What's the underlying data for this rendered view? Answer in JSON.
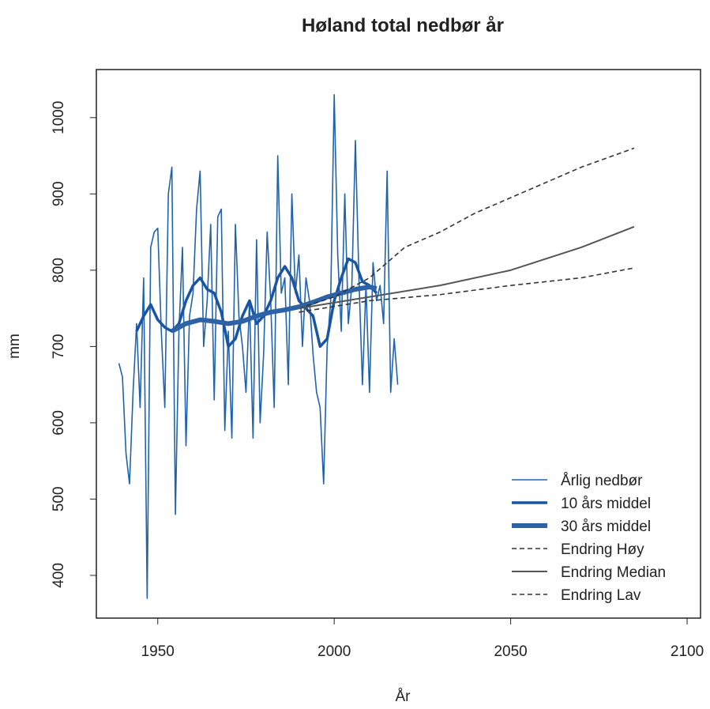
{
  "chart_data": {
    "type": "line",
    "title": "Høland total nedbør  år",
    "xlabel": "År",
    "ylabel": "mm",
    "xlim": [
      1932.6,
      2103.8
    ],
    "ylim": [
      344,
      1063
    ],
    "xticks": [
      1950,
      2000,
      2050,
      2100
    ],
    "yticks": [
      400,
      500,
      600,
      700,
      800,
      900,
      1000
    ],
    "legend": "bottom-right",
    "series": [
      {
        "name": "Årlig nedbør",
        "color": "#1f63ad",
        "width": 1.6,
        "dash": "solid",
        "x": [
          1939,
          1940,
          1941,
          1942,
          1943,
          1944,
          1945,
          1946,
          1947,
          1948,
          1949,
          1950,
          1951,
          1952,
          1953,
          1954,
          1955,
          1956,
          1957,
          1958,
          1959,
          1960,
          1961,
          1962,
          1963,
          1964,
          1965,
          1966,
          1967,
          1968,
          1969,
          1970,
          1971,
          1972,
          1973,
          1974,
          1975,
          1976,
          1977,
          1978,
          1979,
          1980,
          1981,
          1982,
          1983,
          1984,
          1985,
          1986,
          1987,
          1988,
          1989,
          1990,
          1991,
          1992,
          1993,
          1994,
          1995,
          1996,
          1997,
          1998,
          1999,
          2000,
          2001,
          2002,
          2003,
          2004,
          2005,
          2006,
          2007,
          2008,
          2009,
          2010,
          2011,
          2012,
          2013,
          2014,
          2015,
          2016,
          2017,
          2018
        ],
        "values": [
          678,
          660,
          560,
          520,
          640,
          730,
          620,
          790,
          370,
          830,
          850,
          855,
          720,
          620,
          900,
          935,
          480,
          720,
          830,
          570,
          740,
          770,
          880,
          930,
          700,
          760,
          860,
          630,
          870,
          880,
          590,
          720,
          580,
          860,
          740,
          700,
          640,
          760,
          580,
          840,
          600,
          690,
          850,
          760,
          620,
          950,
          770,
          790,
          650,
          900,
          770,
          820,
          700,
          790,
          760,
          690,
          640,
          620,
          520,
          700,
          760,
          1030,
          820,
          720,
          900,
          730,
          780,
          970,
          790,
          650,
          780,
          640,
          810,
          760,
          780,
          730,
          930,
          640,
          710,
          650
        ]
      },
      {
        "name": "10 års middel",
        "color": "#1a55a3",
        "width": 3.5,
        "dash": "solid",
        "x": [
          1944,
          1946,
          1948,
          1950,
          1952,
          1954,
          1956,
          1958,
          1960,
          1962,
          1964,
          1966,
          1968,
          1970,
          1972,
          1974,
          1976,
          1978,
          1980,
          1982,
          1984,
          1986,
          1988,
          1990,
          1992,
          1994,
          1996,
          1998,
          2000,
          2002,
          2004,
          2006,
          2008,
          2010,
          2012
        ],
        "values": [
          720,
          740,
          755,
          735,
          725,
          720,
          730,
          760,
          780,
          790,
          775,
          770,
          745,
          700,
          710,
          740,
          760,
          730,
          740,
          760,
          790,
          805,
          790,
          760,
          750,
          740,
          700,
          710,
          760,
          790,
          815,
          810,
          785,
          780,
          770
        ]
      },
      {
        "name": "30 års middel",
        "color": "#2d63a6",
        "width": 6,
        "dash": "solid",
        "x": [
          1954,
          1958,
          1962,
          1966,
          1970,
          1974,
          1978,
          1982,
          1986,
          1990,
          1994,
          1998,
          2002,
          2006,
          2010,
          2012
        ],
        "values": [
          720,
          730,
          735,
          733,
          730,
          733,
          740,
          745,
          748,
          752,
          758,
          765,
          770,
          775,
          778,
          776
        ]
      },
      {
        "name": "Endring Høy",
        "color": "#333333",
        "width": 1.6,
        "dash": "dashed",
        "x": [
          1990,
          2000,
          2010,
          2020,
          2030,
          2040,
          2050,
          2060,
          2070,
          2085
        ],
        "values": [
          750,
          765,
          790,
          830,
          850,
          875,
          895,
          915,
          935,
          960
        ]
      },
      {
        "name": "Endring Median",
        "color": "#555555",
        "width": 2,
        "dash": "solid",
        "x": [
          1990,
          2010,
          2030,
          2050,
          2070,
          2085
        ],
        "values": [
          750,
          765,
          780,
          800,
          830,
          857
        ]
      },
      {
        "name": "Endring Lav",
        "color": "#333333",
        "width": 1.6,
        "dash": "dashed",
        "x": [
          1990,
          2010,
          2030,
          2050,
          2070,
          2085
        ],
        "values": [
          745,
          760,
          768,
          780,
          790,
          803
        ]
      }
    ]
  }
}
